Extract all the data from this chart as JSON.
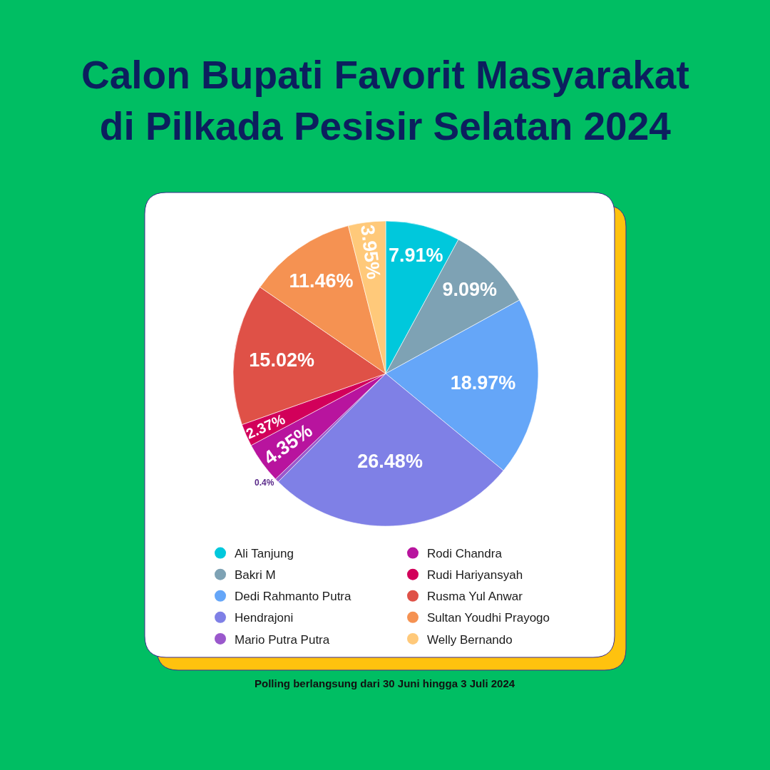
{
  "chart_data": {
    "type": "pie",
    "title": "Calon Bupati Favorit Masyarakat\ndi Pilkada Pesisir Selatan 2024",
    "categories": [
      "Ali Tanjung",
      "Bakri M",
      "Dedi Rahmanto Putra",
      "Hendrajoni",
      "Mario Putra Putra",
      "Rodi Chandra",
      "Rudi Hariyansyah",
      "Rusma Yul Anwar",
      "Sultan Youdhi Prayogo",
      "Welly Bernando"
    ],
    "values": [
      7.91,
      9.09,
      18.97,
      26.48,
      0.4,
      4.35,
      2.37,
      15.02,
      11.46,
      3.95
    ],
    "value_labels": [
      "7.91%",
      "9.09%",
      "18.97%",
      "26.48%",
      "0.4%",
      "4.35%",
      "2.37%",
      "15.02%",
      "11.46%",
      "3.95%"
    ],
    "colors": [
      "#00c8dc",
      "#7ea2b4",
      "#65a6f8",
      "#7f80e6",
      "#9a58cc",
      "#b8149e",
      "#d2005a",
      "#df5147",
      "#f59252",
      "#ffc97a"
    ],
    "legend": "bottom",
    "annotations": [
      "Polling berlangsung dari 30 Juni hingga 3 Juli 2024"
    ]
  }
}
